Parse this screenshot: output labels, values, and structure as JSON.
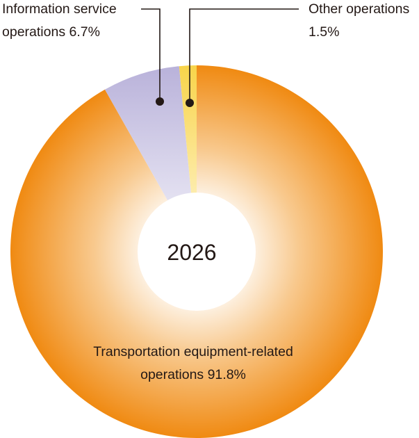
{
  "chart_data": {
    "type": "pie",
    "center_label": "2026",
    "slices": [
      {
        "label_line1": "Transportation equipment-related",
        "label_line2": "operations 91.8%",
        "value": 91.8,
        "color": "#F08A12"
      },
      {
        "label_line1": "Information service",
        "label_line2": "operations  6.7%",
        "value": 6.7,
        "color": "#B9B2DA"
      },
      {
        "label_line1": "Other operations",
        "label_line2": "1.5%",
        "value": 1.5,
        "color": "#F8D44A"
      }
    ]
  }
}
